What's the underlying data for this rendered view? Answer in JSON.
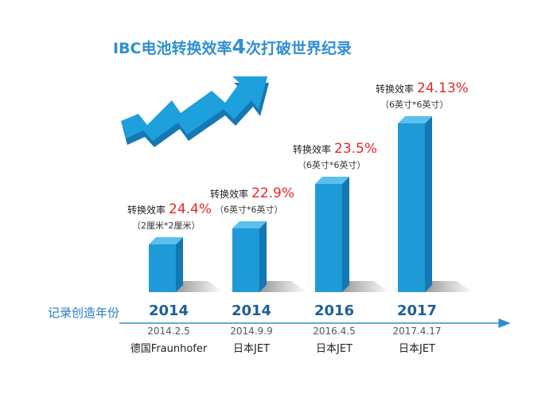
{
  "title": {
    "prefix": "IBC电池转换效率",
    "number": "4",
    "suffix": "次打破世界纪录"
  },
  "chart_data": {
    "type": "bar",
    "title": "IBC电池转换效率4次打破世界纪录",
    "xlabel": "记录创造年份",
    "ylabel": "",
    "value_label": "转换效率",
    "categories": [
      "2014",
      "2014",
      "2016",
      "2017"
    ],
    "values": [
      24.4,
      22.9,
      23.5,
      24.13
    ],
    "value_labels": [
      "24.4%",
      "22.9%",
      "23.5%",
      "24.13%"
    ],
    "sizes": [
      "（2厘米*2厘米）",
      "（6英寸*6英寸）",
      "（6英寸*6英寸）",
      "（6英寸*6英寸）"
    ],
    "dates": [
      "2014.2.5",
      "2014.9.9",
      "2016.4.5",
      "2017.4.17"
    ],
    "institutions": [
      "德国Fraunhofer",
      "日本JET",
      "日本JET",
      "日本JET"
    ],
    "colors": {
      "bar_front": "#1e9ad6",
      "bar_side": "#1478b4",
      "bar_top": "#5cc0ee",
      "accent": "#e8262b",
      "axis": "#2a8fd0"
    }
  }
}
